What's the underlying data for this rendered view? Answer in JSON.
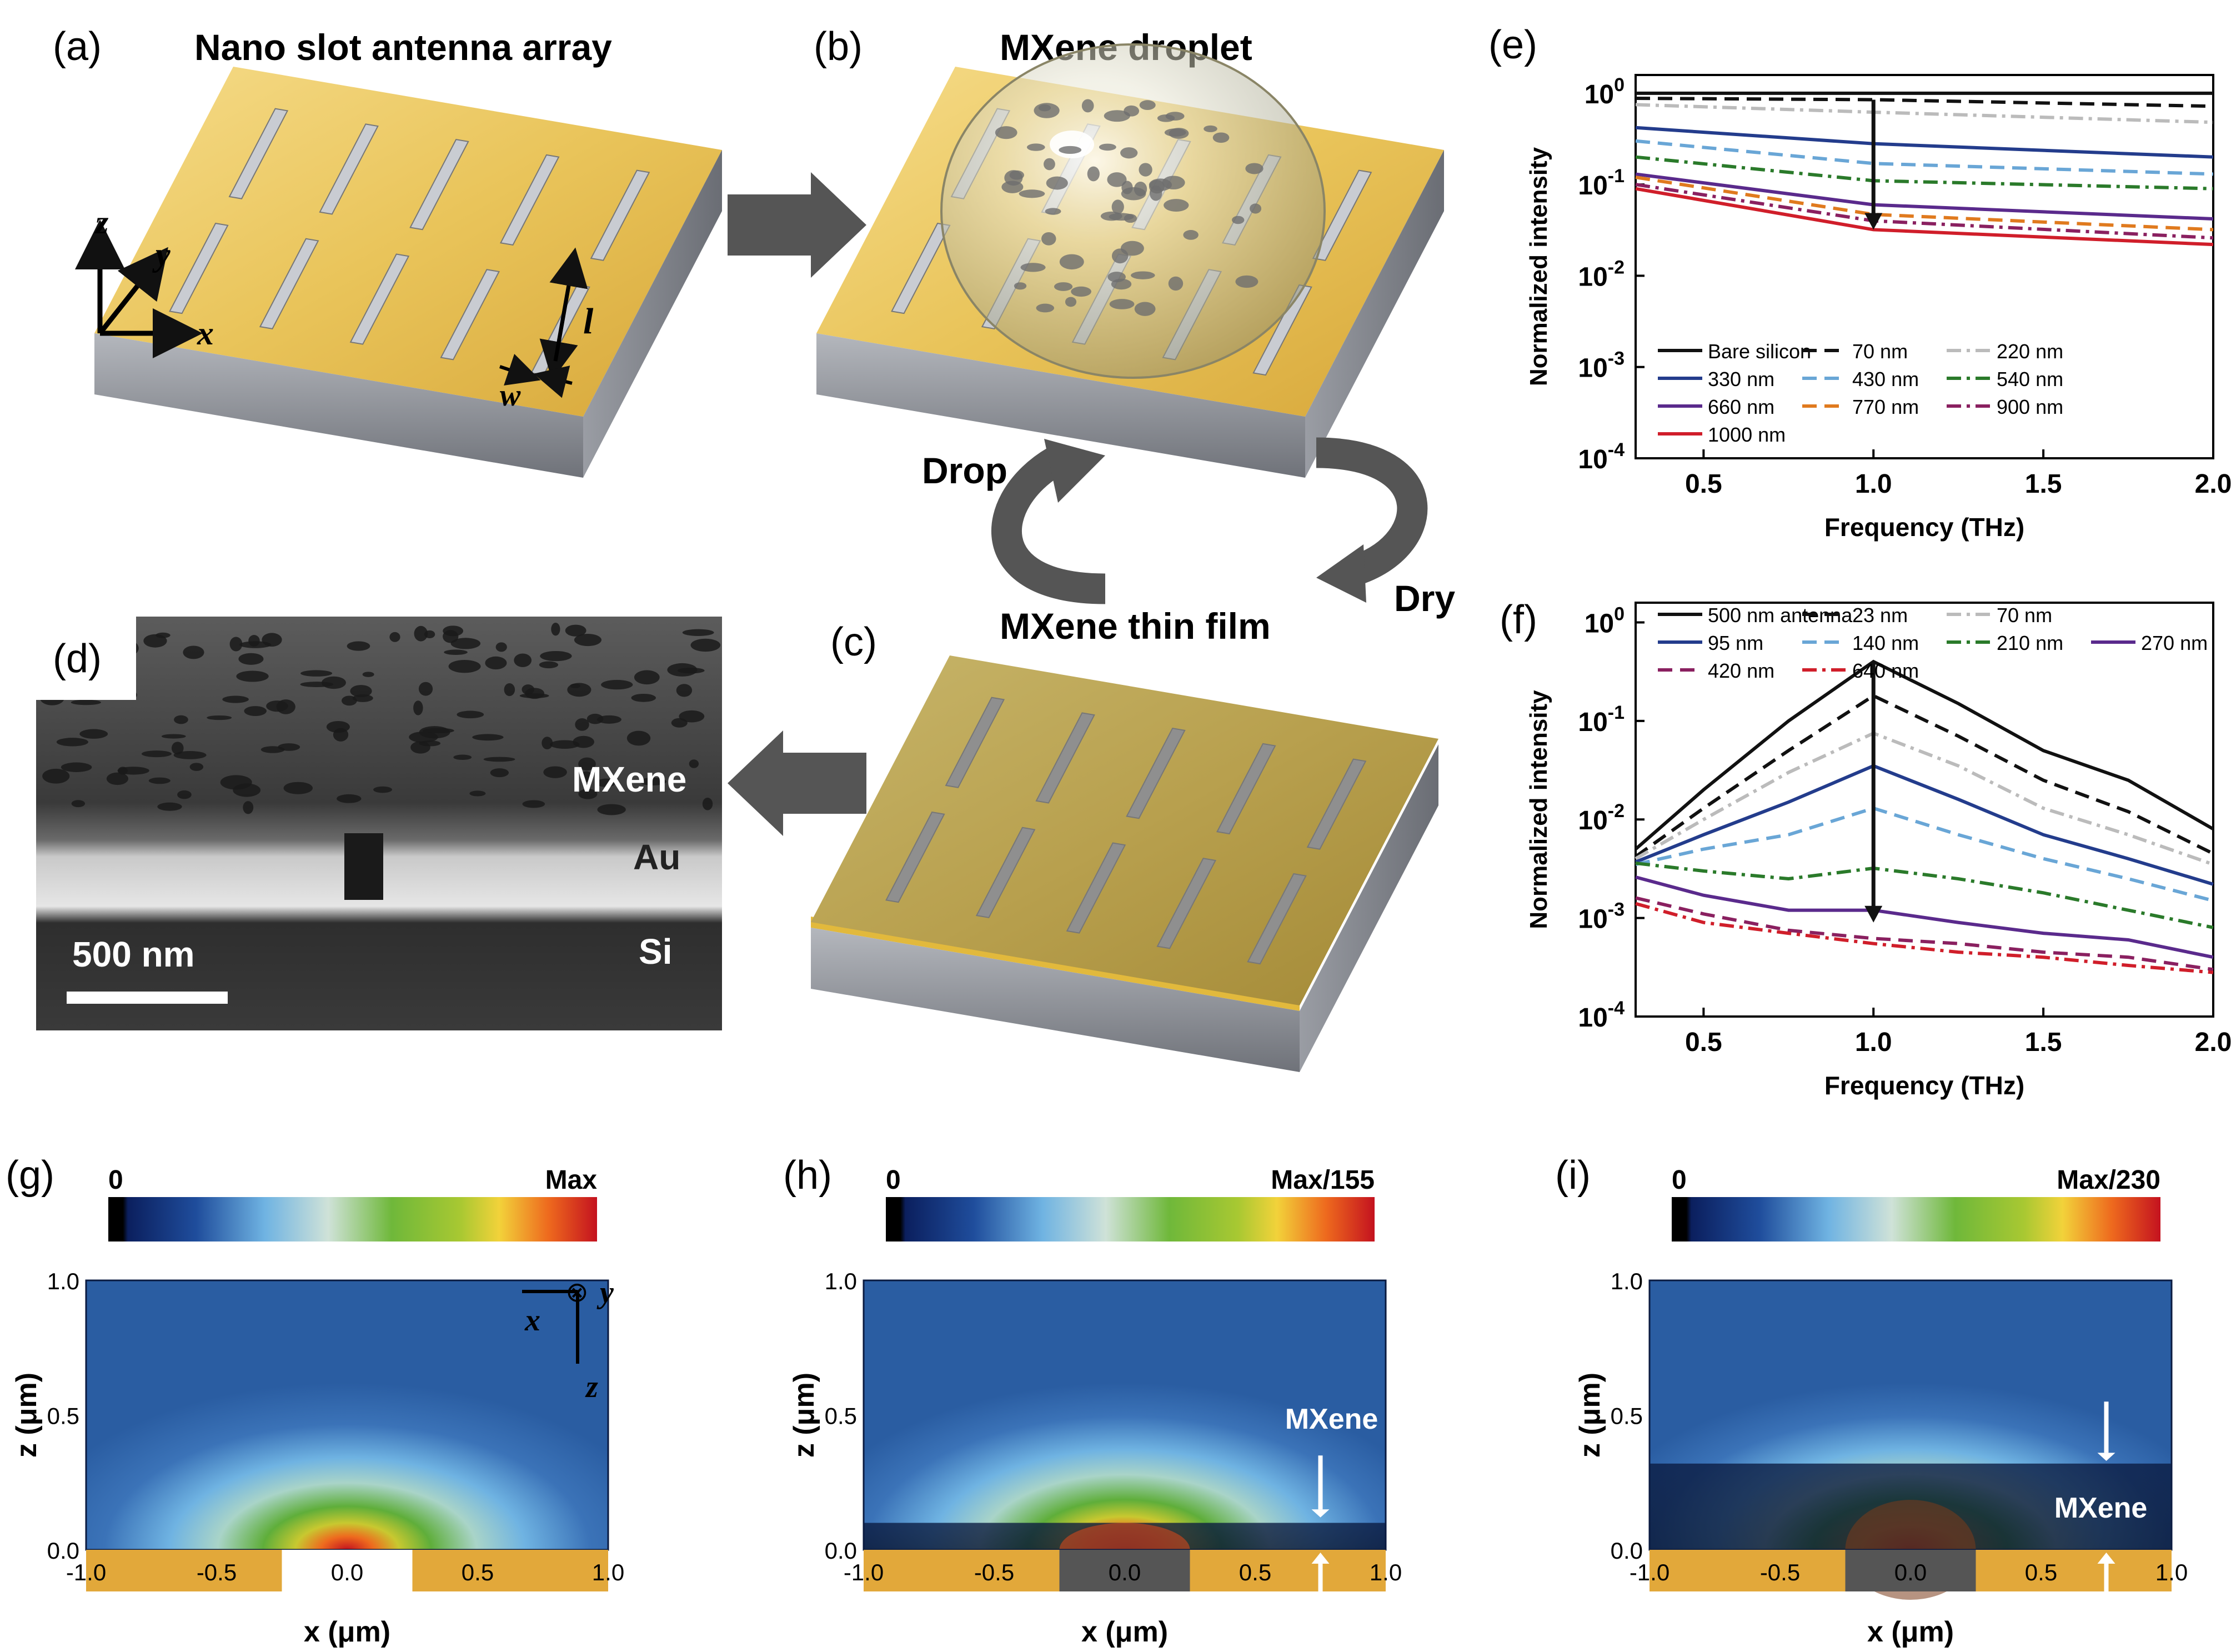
{
  "panels": {
    "a": {
      "label": "(a)",
      "title": "Nano slot antenna array"
    },
    "b": {
      "label": "(b)",
      "title": "MXene droplet"
    },
    "c": {
      "label": "(c)",
      "title": "MXene thin film"
    },
    "d": {
      "label": "(d)"
    },
    "e": {
      "label": "(e)"
    },
    "f": {
      "label": "(f)"
    },
    "g": {
      "label": "(g)"
    },
    "h": {
      "label": "(h)"
    },
    "i": {
      "label": "(i)"
    }
  },
  "axes_a": {
    "z": "z",
    "y": "y",
    "x": "x",
    "l": "l",
    "w": "w"
  },
  "process": {
    "drop": "Drop",
    "dry": "Dry"
  },
  "sem": {
    "mxene": "MXene",
    "au": "Au",
    "si": "Si",
    "scale": "500 nm"
  },
  "colors": {
    "gold": "#e0b94a",
    "gray_base": "#8a8d93",
    "curve_black": "#111111",
    "blue": "#233c8c",
    "lightblue": "#69a6d6",
    "green": "#2a7a2a",
    "purple": "#5a2a8c",
    "orange": "#e07a1e",
    "maroon": "#8a2060",
    "red": "#d01e2a"
  },
  "chart_data": [
    {
      "type": "line",
      "id": "e",
      "title": "",
      "xlabel": "Frequency (THz)",
      "ylabel": "Normalized intensity",
      "xlim": [
        0.3,
        2.0
      ],
      "ylim_log10": [
        -4,
        0.2
      ],
      "yscale": "log",
      "xticks": [
        "0.5",
        "1.0",
        "1.5",
        "2.0"
      ],
      "yticks": [
        "10^0",
        "10^-1",
        "10^-2",
        "10^-3",
        "10^-4"
      ],
      "x": [
        0.3,
        1.0,
        2.0
      ],
      "series": [
        {
          "name": "Bare silicon",
          "values": [
            1.0,
            1.0,
            1.0
          ],
          "color": "#111111",
          "dash": ""
        },
        {
          "name": "70 nm",
          "values": [
            0.88,
            0.85,
            0.72
          ],
          "color": "#111111",
          "dash": "26,14"
        },
        {
          "name": "220 nm",
          "values": [
            0.75,
            0.62,
            0.48
          ],
          "color": "#bbbbbb",
          "dash": "26,10,6,10"
        },
        {
          "name": "330 nm",
          "values": [
            0.42,
            0.28,
            0.2
          ],
          "color": "#233c8c",
          "dash": ""
        },
        {
          "name": "430 nm",
          "values": [
            0.3,
            0.17,
            0.13
          ],
          "color": "#69a6d6",
          "dash": "26,14"
        },
        {
          "name": "540 nm",
          "values": [
            0.2,
            0.11,
            0.09
          ],
          "color": "#2a7a2a",
          "dash": "26,10,6,10"
        },
        {
          "name": "660 nm",
          "values": [
            0.13,
            0.06,
            0.042
          ],
          "color": "#5a2a8c",
          "dash": ""
        },
        {
          "name": "770 nm",
          "values": [
            0.12,
            0.047,
            0.032
          ],
          "color": "#e07a1e",
          "dash": "26,14"
        },
        {
          "name": "900 nm",
          "values": [
            0.1,
            0.04,
            0.026
          ],
          "color": "#8a2060",
          "dash": "26,10,6,10"
        },
        {
          "name": "1000 nm",
          "values": [
            0.09,
            0.032,
            0.022
          ],
          "color": "#d01e2a",
          "dash": ""
        }
      ],
      "arrow": {
        "x": 1.0,
        "from": 0.85,
        "to": 0.032
      }
    },
    {
      "type": "line",
      "id": "f",
      "title": "",
      "xlabel": "Frequency (THz)",
      "ylabel": "Normalized intensity",
      "xlim": [
        0.3,
        2.0
      ],
      "ylim_log10": [
        -4,
        0.2
      ],
      "yscale": "log",
      "xticks": [
        "0.5",
        "1.0",
        "1.5",
        "2.0"
      ],
      "yticks": [
        "10^0",
        "10^-1",
        "10^-2",
        "10^-3",
        "10^-4"
      ],
      "x": [
        0.3,
        0.5,
        0.75,
        1.0,
        1.25,
        1.5,
        1.75,
        2.0
      ],
      "series": [
        {
          "name": "500 nm antenna",
          "values": [
            0.005,
            0.02,
            0.1,
            0.4,
            0.15,
            0.05,
            0.025,
            0.008
          ],
          "color": "#111111",
          "dash": ""
        },
        {
          "name": "23 nm",
          "values": [
            0.0042,
            0.013,
            0.05,
            0.18,
            0.07,
            0.025,
            0.012,
            0.0045
          ],
          "color": "#111111",
          "dash": "26,14"
        },
        {
          "name": "70 nm",
          "values": [
            0.004,
            0.01,
            0.03,
            0.075,
            0.035,
            0.013,
            0.007,
            0.0035
          ],
          "color": "#bbbbbb",
          "dash": "26,10,6,10"
        },
        {
          "name": "95 nm",
          "values": [
            0.0037,
            0.007,
            0.015,
            0.035,
            0.016,
            0.007,
            0.004,
            0.0022
          ],
          "color": "#233c8c",
          "dash": ""
        },
        {
          "name": "140 nm",
          "values": [
            0.0035,
            0.005,
            0.007,
            0.013,
            0.007,
            0.004,
            0.0025,
            0.0015
          ],
          "color": "#69a6d6",
          "dash": "26,14"
        },
        {
          "name": "210 nm",
          "values": [
            0.0036,
            0.003,
            0.0025,
            0.0032,
            0.0025,
            0.0018,
            0.0012,
            0.0008
          ],
          "color": "#2a7a2a",
          "dash": "26,10,6,10"
        },
        {
          "name": "270 nm",
          "values": [
            0.0026,
            0.0017,
            0.0012,
            0.0012,
            0.0009,
            0.0007,
            0.0006,
            0.0004
          ],
          "color": "#5a2a8c",
          "dash": ""
        },
        {
          "name": "420 nm",
          "values": [
            0.0016,
            0.0011,
            0.00075,
            0.00062,
            0.00055,
            0.00045,
            0.0004,
            0.0003
          ],
          "color": "#8a2060",
          "dash": "26,14"
        },
        {
          "name": "640 nm",
          "values": [
            0.0014,
            0.0009,
            0.0007,
            0.00055,
            0.00045,
            0.0004,
            0.00033,
            0.00028
          ],
          "color": "#d01e2a",
          "dash": "26,10,6,10"
        }
      ],
      "arrow": {
        "x": 1.0,
        "from": 0.4,
        "to": 0.0009
      }
    },
    {
      "type": "heatmap",
      "id": "g",
      "xlabel": "x (μm)",
      "ylabel": "z (μm)",
      "xlim": [
        -1.0,
        1.0
      ],
      "ylim": [
        0.0,
        1.0
      ],
      "xticks": [
        "-1.0",
        "-0.5",
        "0.0",
        "0.5",
        "1.0"
      ],
      "yticks": [
        "0.0",
        "0.5",
        "1.0"
      ],
      "colorbar": {
        "min_label": "0",
        "max_label": "Max"
      },
      "mxene_thickness_um": 0.0,
      "gap_fill": "#ffffff",
      "axes_symbols": {
        "x": "x",
        "y": "y",
        "z": "z",
        "cross": "⊗"
      }
    },
    {
      "type": "heatmap",
      "id": "h",
      "xlabel": "x (μm)",
      "ylabel": "z (μm)",
      "xlim": [
        -1.0,
        1.0
      ],
      "ylim": [
        0.0,
        1.0
      ],
      "xticks": [
        "-1.0",
        "-0.5",
        "0.0",
        "0.5",
        "1.0"
      ],
      "yticks": [
        "0.0",
        "0.5",
        "1.0"
      ],
      "colorbar": {
        "min_label": "0",
        "max_label": "Max/155"
      },
      "mxene_thickness_um": 0.1,
      "mxene_label": "MXene",
      "gap_fill": "#555555"
    },
    {
      "type": "heatmap",
      "id": "i",
      "xlabel": "x (μm)",
      "ylabel": "z (μm)",
      "xlim": [
        -1.0,
        1.0
      ],
      "ylim": [
        0.0,
        1.0
      ],
      "xticks": [
        "-1.0",
        "-0.5",
        "0.0",
        "0.5",
        "1.0"
      ],
      "yticks": [
        "0.0",
        "0.5",
        "1.0"
      ],
      "colorbar": {
        "min_label": "0",
        "max_label": "Max/230"
      },
      "mxene_thickness_um": 0.32,
      "mxene_label": "MXene",
      "gap_fill": "#555555"
    }
  ]
}
